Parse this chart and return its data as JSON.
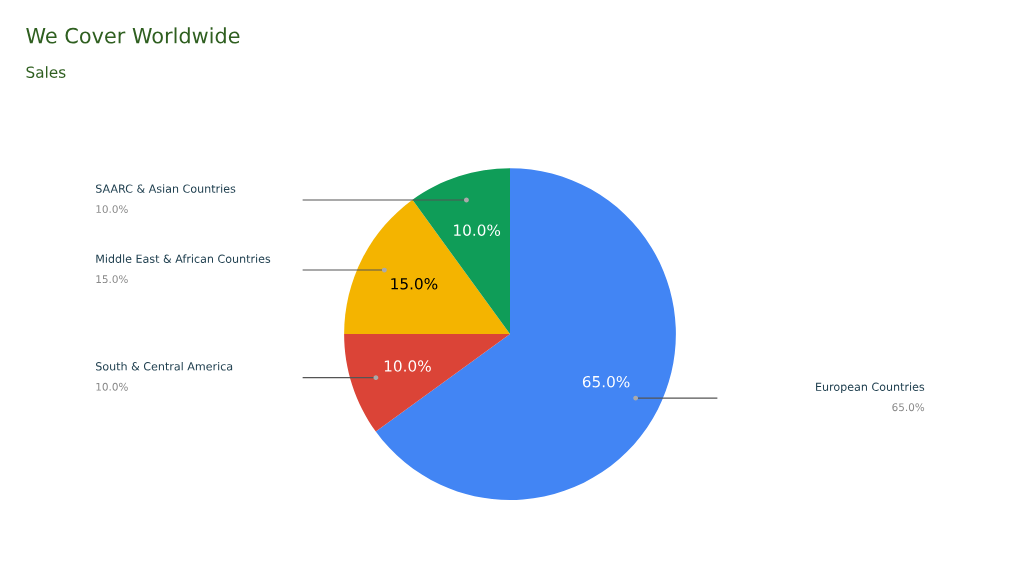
{
  "chart_data": {
    "type": "pie",
    "title": "We Cover Worldwide",
    "subtitle": "Sales",
    "categories": [
      "European Countries",
      "South & Central America",
      "Middle East & African Countries",
      "SAARC & Asian Countries"
    ],
    "values": [
      65,
      10,
      15,
      10
    ],
    "colors": [
      "#4285f4",
      "#db4437",
      "#f4b400",
      "#0f9d58"
    ],
    "value_labels": [
      "65.0%",
      "10.0%",
      "15.0%",
      "10.0%"
    ],
    "legend": false
  }
}
